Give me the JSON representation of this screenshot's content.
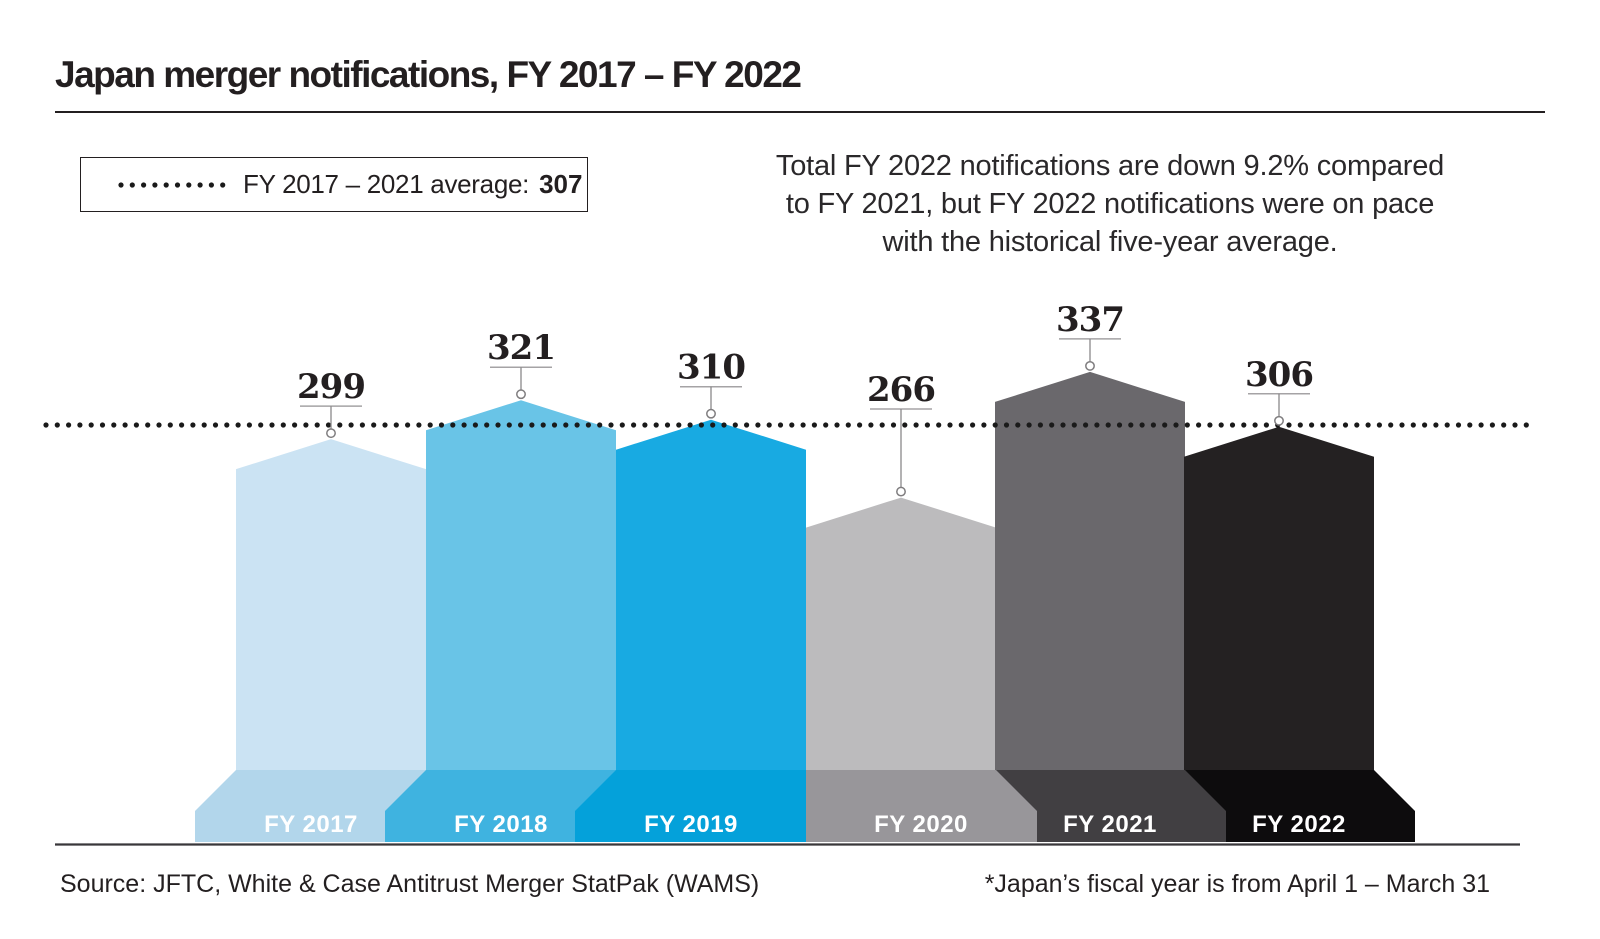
{
  "header": {
    "title": "Japan merger notifications, FY 2017 – FY 2022"
  },
  "legend": {
    "label": "FY 2017 – 2021 average:",
    "value": "307"
  },
  "annotation": {
    "lines": [
      "Total FY 2022 notifications are down 9.2% compared",
      "to FY 2021, but FY 2022 notifications were on pace",
      "with the historical five-year average."
    ]
  },
  "footer": {
    "source": "Source: JFTC, White & Case Antitrust Merger StatPak (WAMS)",
    "footnote": "*Japan’s fiscal year is from April 1 – March 31"
  },
  "chart_data": {
    "type": "bar",
    "title": "Japan merger notifications, FY 2017 – FY 2022",
    "categories": [
      "FY 2017",
      "FY 2018",
      "FY 2019",
      "FY 2020",
      "FY 2021",
      "FY 2022"
    ],
    "values": [
      299,
      321,
      310,
      266,
      337,
      306
    ],
    "average": 307,
    "average_label": "FY 2017 – 2021 average: 307",
    "legend_position": "top-left",
    "grid": false,
    "y_axis_visible": false,
    "x_axis_visible": false,
    "average_line_style": "dotted",
    "average_line_color": "#1a1a1a",
    "value_label_color": "#231f20",
    "category_label_color": "#ffffff",
    "bar_styles": [
      {
        "body": "#cbe3f3",
        "base": "#b2d6eb"
      },
      {
        "body": "#69c4e7",
        "base": "#3fb3e0"
      },
      {
        "body": "#18aae2",
        "base": "#04a1da"
      },
      {
        "body": "#bcbbbd",
        "base": "#98969a"
      },
      {
        "body": "#6a686c",
        "base": "#413f42"
      },
      {
        "body": "#242122",
        "base": "#0d0c0d"
      }
    ]
  }
}
